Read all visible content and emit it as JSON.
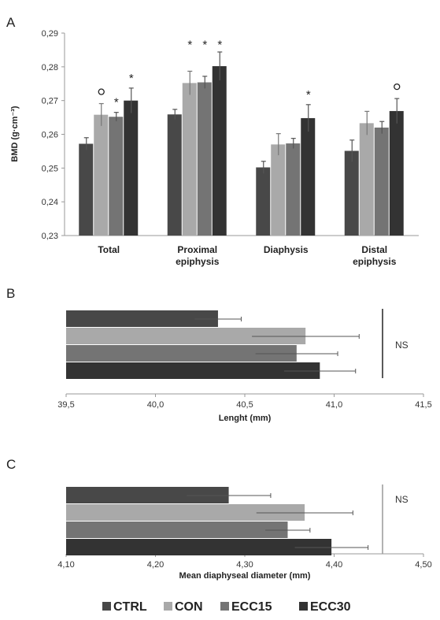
{
  "colors": {
    "CTRL": "#484848",
    "CON": "#a9a9a9",
    "ECC15": "#747474",
    "ECC30": "#333333",
    "axis": "#9a9a9a",
    "grid": "#9a9a9a"
  },
  "legend": [
    "CTRL",
    "CON",
    "ECC15",
    "ECC30"
  ],
  "chart_data": [
    {
      "panel": "A",
      "type": "bar",
      "ylabel": "BMD (g·cm⁻³)",
      "ylim": [
        0.23,
        0.29
      ],
      "yticks": [
        "0,23",
        "0,24",
        "0,25",
        "0,26",
        "0,27",
        "0,28",
        "0,29"
      ],
      "categories": [
        [
          "Total"
        ],
        [
          "Proximal",
          "epiphysis"
        ],
        [
          "Diaphysis"
        ],
        [
          "Distal",
          "epiphysis"
        ]
      ],
      "series": [
        {
          "name": "CTRL",
          "values": [
            0.2572,
            0.2659,
            0.2502,
            0.2551
          ],
          "errors": [
            0.0018,
            0.0015,
            0.0018,
            0.0032
          ]
        },
        {
          "name": "CON",
          "values": [
            0.2658,
            0.2752,
            0.257,
            0.2633
          ],
          "errors": [
            0.0033,
            0.0035,
            0.0032,
            0.0035
          ]
        },
        {
          "name": "ECC15",
          "values": [
            0.2652,
            0.2754,
            0.2573,
            0.262
          ],
          "errors": [
            0.0013,
            0.0018,
            0.0015,
            0.0018
          ]
        },
        {
          "name": "ECC30",
          "values": [
            0.27,
            0.2802,
            0.2648,
            0.2669
          ],
          "errors": [
            0.0037,
            0.0042,
            0.004,
            0.0037
          ]
        }
      ],
      "annotations": [
        {
          "category": 0,
          "series": 1,
          "text": "o"
        },
        {
          "category": 0,
          "series": 2,
          "text": "*"
        },
        {
          "category": 0,
          "series": 3,
          "text": "*"
        },
        {
          "category": 1,
          "series": 1,
          "text": "*"
        },
        {
          "category": 1,
          "series": 2,
          "text": "*"
        },
        {
          "category": 1,
          "series": 3,
          "text": "*"
        },
        {
          "category": 2,
          "series": 3,
          "text": "*"
        },
        {
          "category": 3,
          "series": 3,
          "text": "o"
        }
      ]
    },
    {
      "panel": "B",
      "type": "bar",
      "orientation": "horizontal",
      "xlabel": "Lenght (mm)",
      "xlim": [
        39.5,
        41.5
      ],
      "xticks": [
        "39,5",
        "40,0",
        "40,5",
        "41,0",
        "41,5"
      ],
      "series": [
        {
          "name": "CTRL",
          "value": 40.35,
          "error": 0.13
        },
        {
          "name": "CON",
          "value": 40.84,
          "error": 0.3
        },
        {
          "name": "ECC15",
          "value": 40.79,
          "error": 0.23
        },
        {
          "name": "ECC30",
          "value": 40.92,
          "error": 0.2
        }
      ],
      "annotation": "NS"
    },
    {
      "panel": "C",
      "type": "bar",
      "orientation": "horizontal",
      "xlabel": "Mean diaphyseal diameter (mm)",
      "xlim": [
        4.1,
        4.5
      ],
      "xticks": [
        "4,10",
        "4,20",
        "4,30",
        "4,40",
        "4,50"
      ],
      "series": [
        {
          "name": "CTRL",
          "value": 4.282,
          "error": 0.047
        },
        {
          "name": "CON",
          "value": 4.367,
          "error": 0.054
        },
        {
          "name": "ECC15",
          "value": 4.348,
          "error": 0.025
        },
        {
          "name": "ECC30",
          "value": 4.397,
          "error": 0.041
        }
      ],
      "annotation": "NS"
    }
  ]
}
